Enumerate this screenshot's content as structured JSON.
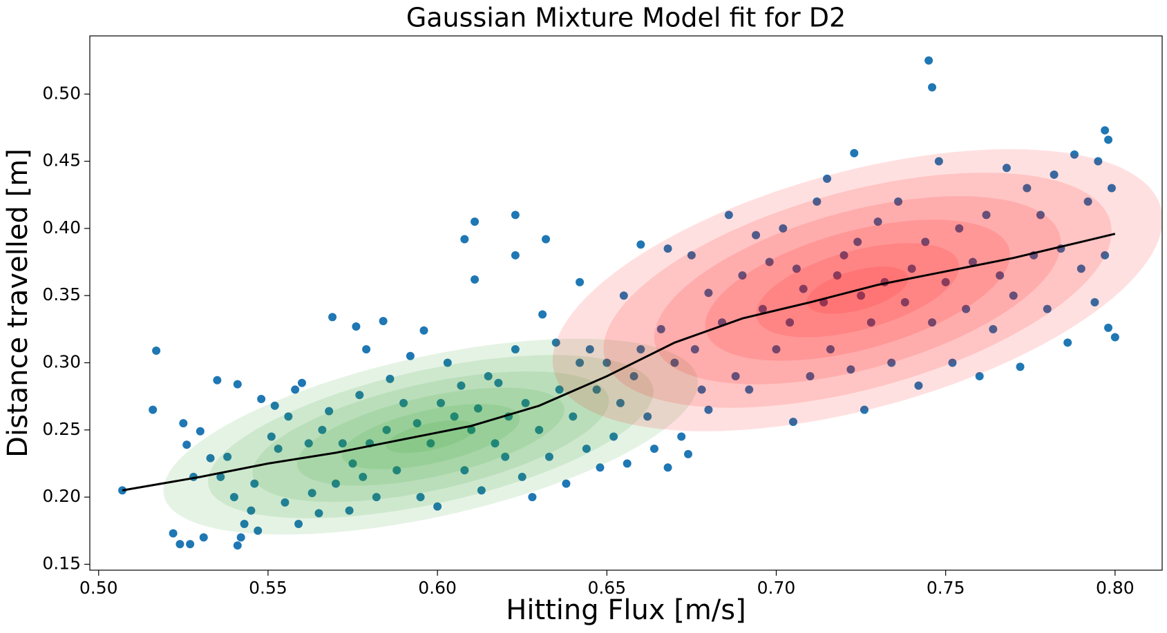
{
  "chart_data": {
    "type": "scatter",
    "title": "Gaussian Mixture Model fit for D2",
    "xlabel": "Hitting Flux [m/s]",
    "ylabel": "Distance travelled [m]",
    "color": "#1f77b4",
    "xlim": [
      0.4974,
      0.8139
    ],
    "ylim": [
      0.1456,
      0.5433
    ],
    "xticks": [
      {
        "value": 0.5,
        "label": "0.50"
      },
      0.55,
      {
        "value": 0.6,
        "label": "0.60"
      },
      0.65,
      {
        "value": 0.7,
        "label": "0.70"
      },
      0.75,
      {
        "value": 0.8,
        "label": "0.80"
      }
    ],
    "yticks": [
      0.15,
      {
        "value": 0.2,
        "label": "0.20"
      },
      0.25,
      {
        "value": 0.3,
        "label": "0.30"
      },
      0.35,
      {
        "value": 0.4,
        "label": "0.40"
      },
      0.45,
      {
        "value": 0.5,
        "label": "0.50"
      }
    ],
    "grid": false,
    "x": [
      0.53,
      0.525,
      0.526,
      0.533,
      0.535,
      0.528,
      0.531,
      0.536,
      0.538,
      0.54,
      0.541,
      0.542,
      0.543,
      0.545,
      0.546,
      0.547,
      0.548,
      0.551,
      0.552,
      0.553,
      0.555,
      0.556,
      0.558,
      0.559,
      0.56,
      0.562,
      0.563,
      0.565,
      0.566,
      0.568,
      0.569,
      0.57,
      0.572,
      0.574,
      0.575,
      0.576,
      0.577,
      0.578,
      0.579,
      0.58,
      0.582,
      0.584,
      0.585,
      0.586,
      0.588,
      0.59,
      0.592,
      0.594,
      0.595,
      0.596,
      0.598,
      0.6,
      0.601,
      0.603,
      0.605,
      0.607,
      0.608,
      0.61,
      0.612,
      0.613,
      0.615,
      0.617,
      0.618,
      0.62,
      0.621,
      0.623,
      0.625,
      0.626,
      0.628,
      0.63,
      0.631,
      0.633,
      0.635,
      0.636,
      0.638,
      0.64,
      0.642,
      0.644,
      0.645,
      0.647,
      0.648,
      0.65,
      0.652,
      0.654,
      0.655,
      0.656,
      0.658,
      0.66,
      0.662,
      0.664,
      0.666,
      0.668,
      0.67,
      0.672,
      0.674,
      0.676,
      0.678,
      0.68,
      0.642,
      0.66,
      0.668,
      0.675,
      0.68,
      0.684,
      0.686,
      0.688,
      0.69,
      0.692,
      0.694,
      0.696,
      0.698,
      0.7,
      0.702,
      0.704,
      0.705,
      0.706,
      0.708,
      0.71,
      0.712,
      0.714,
      0.715,
      0.716,
      0.718,
      0.72,
      0.722,
      0.724,
      0.725,
      0.726,
      0.728,
      0.73,
      0.732,
      0.734,
      0.736,
      0.738,
      0.74,
      0.742,
      0.744,
      0.746,
      0.748,
      0.75,
      0.752,
      0.754,
      0.756,
      0.758,
      0.76,
      0.762,
      0.764,
      0.766,
      0.768,
      0.77,
      0.772,
      0.774,
      0.776,
      0.778,
      0.78,
      0.782,
      0.784,
      0.786,
      0.788,
      0.79,
      0.792,
      0.794,
      0.795,
      0.797,
      0.799,
      0.745,
      0.746,
      0.611,
      0.623,
      0.608,
      0.632,
      0.623,
      0.611,
      0.517,
      0.516,
      0.507,
      0.522,
      0.524,
      0.527,
      0.541,
      0.797,
      0.798,
      0.8,
      0.798,
      0.723
    ],
    "y": [
      0.249,
      0.255,
      0.239,
      0.229,
      0.287,
      0.215,
      0.17,
      0.215,
      0.23,
      0.2,
      0.284,
      0.17,
      0.18,
      0.19,
      0.21,
      0.175,
      0.273,
      0.245,
      0.268,
      0.236,
      0.196,
      0.26,
      0.28,
      0.18,
      0.285,
      0.24,
      0.203,
      0.188,
      0.25,
      0.264,
      0.334,
      0.21,
      0.24,
      0.19,
      0.225,
      0.327,
      0.276,
      0.215,
      0.31,
      0.24,
      0.2,
      0.331,
      0.25,
      0.288,
      0.22,
      0.27,
      0.305,
      0.255,
      0.2,
      0.324,
      0.24,
      0.193,
      0.27,
      0.3,
      0.26,
      0.283,
      0.22,
      0.25,
      0.266,
      0.205,
      0.29,
      0.24,
      0.285,
      0.23,
      0.26,
      0.31,
      0.215,
      0.27,
      0.2,
      0.25,
      0.336,
      0.23,
      0.315,
      0.28,
      0.21,
      0.26,
      0.3,
      0.236,
      0.31,
      0.28,
      0.222,
      0.3,
      0.245,
      0.27,
      0.35,
      0.225,
      0.29,
      0.31,
      0.26,
      0.236,
      0.325,
      0.222,
      0.3,
      0.245,
      0.232,
      0.31,
      0.28,
      0.265,
      0.36,
      0.388,
      0.385,
      0.38,
      0.352,
      0.33,
      0.41,
      0.29,
      0.365,
      0.28,
      0.395,
      0.34,
      0.375,
      0.31,
      0.4,
      0.33,
      0.256,
      0.37,
      0.355,
      0.29,
      0.42,
      0.345,
      0.437,
      0.31,
      0.365,
      0.38,
      0.295,
      0.39,
      0.35,
      0.265,
      0.33,
      0.405,
      0.36,
      0.3,
      0.42,
      0.345,
      0.37,
      0.283,
      0.39,
      0.33,
      0.45,
      0.36,
      0.3,
      0.4,
      0.34,
      0.375,
      0.29,
      0.41,
      0.325,
      0.365,
      0.445,
      0.35,
      0.297,
      0.43,
      0.38,
      0.41,
      0.34,
      0.44,
      0.385,
      0.315,
      0.455,
      0.37,
      0.42,
      0.345,
      0.45,
      0.38,
      0.43,
      0.525,
      0.505,
      0.405,
      0.41,
      0.392,
      0.392,
      0.38,
      0.362,
      0.309,
      0.265,
      0.205,
      0.173,
      0.165,
      0.165,
      0.164,
      0.473,
      0.466,
      0.319,
      0.326,
      0.456
    ],
    "components": [
      {
        "mean": [
          0.598,
          0.245
        ],
        "std": [
          0.0263,
          0.0243
        ],
        "rho": 0.55,
        "color": "#2ca02c",
        "levels": [
          3,
          2.5,
          2,
          1.5,
          1,
          0.5
        ]
      },
      {
        "mean": [
          0.724,
          0.354
        ],
        "std": [
          0.03,
          0.035
        ],
        "rho": 0.5,
        "color": "#ff0000",
        "levels": [
          3,
          2.5,
          2,
          1.5,
          1,
          0.5
        ]
      }
    ],
    "fit_line": {
      "color": "#000000",
      "x": [
        0.507,
        0.53,
        0.55,
        0.57,
        0.59,
        0.61,
        0.63,
        0.65,
        0.67,
        0.69,
        0.71,
        0.73,
        0.75,
        0.77,
        0.79,
        0.8
      ],
      "y": [
        0.205,
        0.215,
        0.225,
        0.233,
        0.243,
        0.253,
        0.268,
        0.29,
        0.315,
        0.333,
        0.345,
        0.358,
        0.368,
        0.378,
        0.39,
        0.396
      ]
    }
  }
}
